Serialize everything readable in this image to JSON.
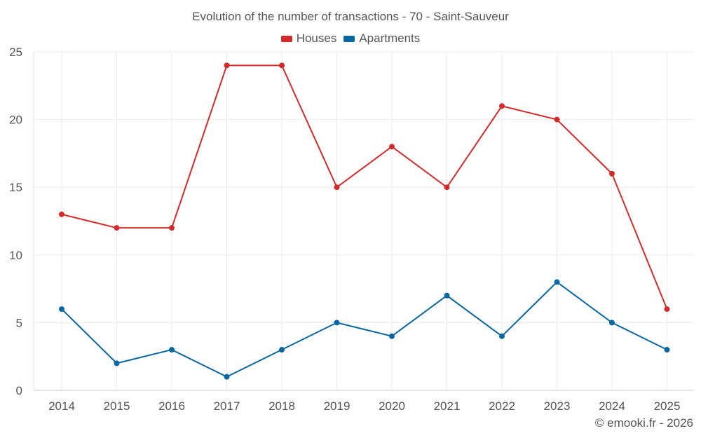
{
  "chart_data": {
    "type": "line",
    "title": "Evolution of the number of transactions - 70 - Saint-Sauveur",
    "categories": [
      "2014",
      "2015",
      "2016",
      "2017",
      "2018",
      "2019",
      "2020",
      "2021",
      "2022",
      "2023",
      "2024",
      "2025"
    ],
    "series": [
      {
        "name": "Houses",
        "color": "#d32a2a",
        "values": [
          13,
          12,
          12,
          24,
          24,
          15,
          18,
          15,
          21,
          20,
          16,
          6
        ]
      },
      {
        "name": "Apartments",
        "color": "#0866a0",
        "values": [
          6,
          2,
          3,
          1,
          3,
          5,
          4,
          7,
          4,
          8,
          5,
          3
        ]
      }
    ],
    "ylim": [
      0,
      25
    ],
    "yticks": [
      "0",
      "5",
      "10",
      "15",
      "20",
      "25"
    ],
    "xlabel": "",
    "ylabel": "",
    "grid": true,
    "legend_position": "top-center"
  },
  "credit": "© emooki.fr - 2026"
}
